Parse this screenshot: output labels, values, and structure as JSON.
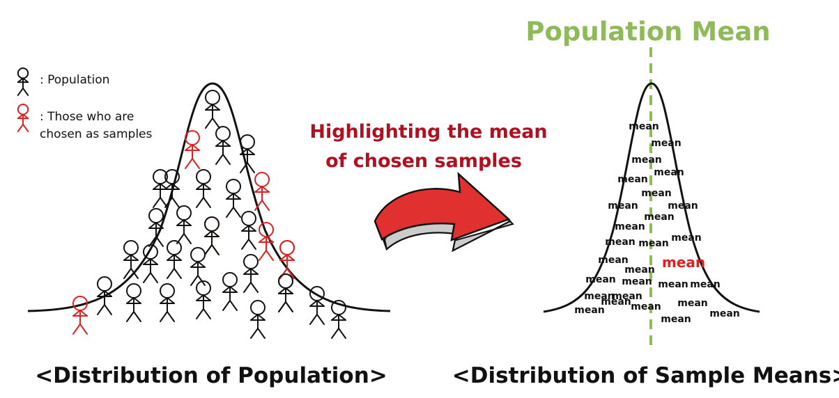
{
  "legend": {
    "population_label": ": Population",
    "samples_label_line1": ": Those who are",
    "samples_label_line2": "chosen as samples"
  },
  "arrow_caption": {
    "line1": "Highlighting the mean",
    "line2": "of chosen samples"
  },
  "population_mean_label": "Population Mean",
  "left_caption": "<Distribution of Population>",
  "right_caption": "<Distribution of Sample Means>",
  "mean_word": "mean",
  "colors": {
    "ink": "#111111",
    "sample_red": "#e02020",
    "caption_red": "#b01020",
    "mean_green": "#8fba5a",
    "arrow_red": "#e03030"
  },
  "people": [
    {
      "chosen": false
    },
    {
      "chosen": false
    },
    {
      "chosen": true
    },
    {
      "chosen": false
    },
    {
      "chosen": false
    },
    {
      "chosen": false
    },
    {
      "chosen": false
    },
    {
      "chosen": true
    },
    {
      "chosen": false
    },
    {
      "chosen": false
    },
    {
      "chosen": true
    },
    {
      "chosen": false
    },
    {
      "chosen": true
    },
    {
      "chosen": false
    },
    {
      "chosen": false
    },
    {
      "chosen": false
    },
    {
      "chosen": false
    },
    {
      "chosen": false
    },
    {
      "chosen": false
    },
    {
      "chosen": false
    },
    {
      "chosen": false
    },
    {
      "chosen": false
    },
    {
      "chosen": false
    },
    {
      "chosen": false
    },
    {
      "chosen": false
    },
    {
      "chosen": false
    },
    {
      "chosen": false
    },
    {
      "chosen": false
    },
    {
      "chosen": true
    },
    {
      "chosen": false
    },
    {
      "chosen": true
    },
    {
      "chosen": false
    },
    {
      "chosen": false
    }
  ],
  "means": [
    {
      "highlighted": false
    },
    {
      "highlighted": false
    },
    {
      "highlighted": false
    },
    {
      "highlighted": false
    },
    {
      "highlighted": false
    },
    {
      "highlighted": false
    },
    {
      "highlighted": false
    },
    {
      "highlighted": false
    },
    {
      "highlighted": false
    },
    {
      "highlighted": false
    },
    {
      "highlighted": false
    },
    {
      "highlighted": false
    },
    {
      "highlighted": false
    },
    {
      "highlighted": false
    },
    {
      "highlighted": true
    },
    {
      "highlighted": false
    },
    {
      "highlighted": false
    },
    {
      "highlighted": false
    },
    {
      "highlighted": false
    },
    {
      "highlighted": false
    },
    {
      "highlighted": false
    },
    {
      "highlighted": false
    },
    {
      "highlighted": false
    },
    {
      "highlighted": false
    },
    {
      "highlighted": false
    },
    {
      "highlighted": false
    },
    {
      "highlighted": false
    },
    {
      "highlighted": false
    }
  ]
}
